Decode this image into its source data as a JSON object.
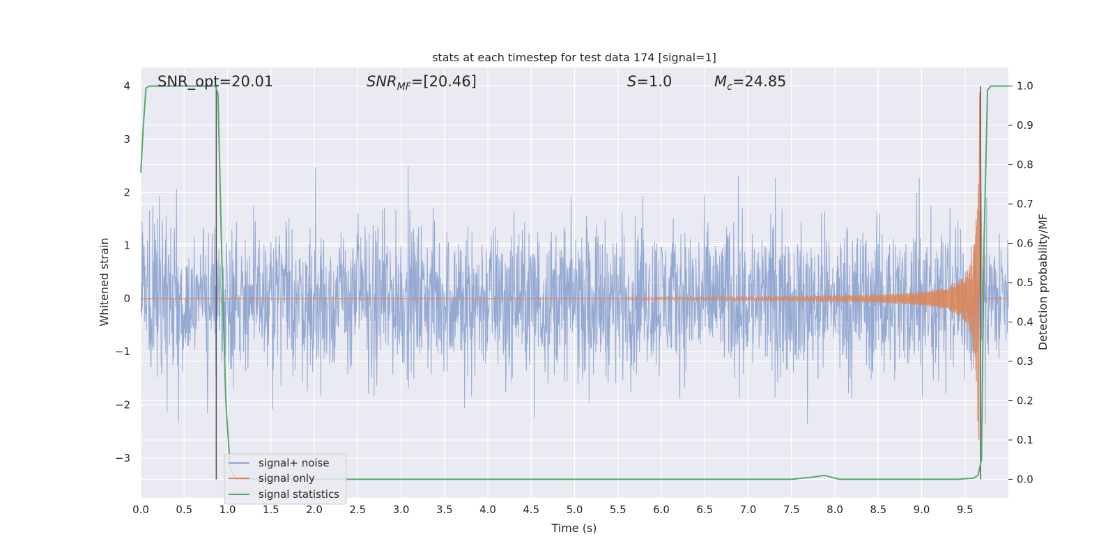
{
  "chart_data": {
    "type": "line",
    "title": "stats at each timestep for test data 174 [signal=1]",
    "xlabel": "Time (s)",
    "ylabel": "Whitened strain",
    "ylabel_right": "Detection probability/MF",
    "xlim": [
      0.0,
      10.0
    ],
    "ylim": [
      -3.75,
      4.35
    ],
    "ylim_right": [
      -0.047,
      1.047
    ],
    "x_ticks": [
      "0.0",
      "0.5",
      "1.0",
      "1.5",
      "2.0",
      "2.5",
      "3.0",
      "3.5",
      "4.0",
      "4.5",
      "5.0",
      "5.5",
      "6.0",
      "6.5",
      "7.0",
      "7.5",
      "8.0",
      "8.5",
      "9.0",
      "9.5"
    ],
    "y_ticks": [
      "4",
      "3",
      "2",
      "1",
      "0",
      "−1",
      "−2",
      "−3"
    ],
    "y_right_ticks": [
      "1.0",
      "0.9",
      "0.8",
      "0.7",
      "0.6",
      "0.5",
      "0.4",
      "0.3",
      "0.2",
      "0.1",
      "0.0"
    ],
    "grid": true,
    "legend_position": "lower-left",
    "annotations": {
      "snr_opt": "SNR_opt=20.01",
      "snr_mf_name": "SNR",
      "snr_mf_sub": "MF",
      "snr_mf_value": "=[20.46]",
      "s_name": "S",
      "s_value": "=1.0",
      "mc_name": "M",
      "mc_sub": "c",
      "mc_value": "=24.85"
    },
    "vertical_markers_s": [
      0.87,
      9.68
    ],
    "noise_band": {
      "typical_amplitude": 1.1,
      "max_positive": 2.6,
      "max_negative": -2.65
    },
    "chirp": {
      "merger_time_s": 9.68,
      "peak_amplitude": 4.0,
      "visible_from_s": 5.6
    },
    "series": [
      {
        "name": "signal+ noise",
        "color": "#8fa5d0",
        "axis": "left"
      },
      {
        "name": "signal only",
        "color": "#dd8452",
        "axis": "left"
      },
      {
        "name": "signal statistics",
        "color": "#55a868",
        "axis": "right",
        "x": [
          0.0,
          0.03,
          0.06,
          0.1,
          0.15,
          0.3,
          0.6,
          0.86,
          0.89,
          0.93,
          0.98,
          1.03,
          1.1,
          2.0,
          5.0,
          7.5,
          7.72,
          7.88,
          8.05,
          8.3,
          9.0,
          9.4,
          9.6,
          9.65,
          9.69,
          9.72,
          9.76,
          9.8,
          10.0
        ],
        "y": [
          0.78,
          0.9,
          0.995,
          1.0,
          1.0,
          1.0,
          1.0,
          1.0,
          0.98,
          0.6,
          0.2,
          0.03,
          0.0,
          0.0,
          0.0,
          0.0,
          0.005,
          0.01,
          0.0,
          0.0,
          0.0,
          0.0,
          0.003,
          0.01,
          0.05,
          0.6,
          0.99,
          1.0,
          1.0
        ]
      }
    ],
    "legend": [
      "signal+ noise",
      "signal only",
      "signal statistics"
    ]
  }
}
